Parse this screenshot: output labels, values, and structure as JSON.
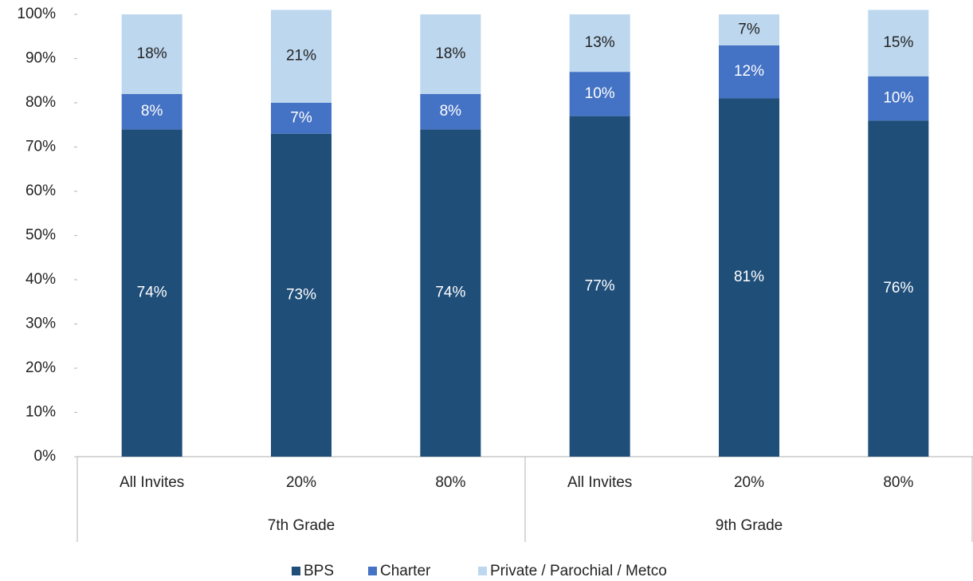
{
  "chart_data": {
    "type": "stacked_bar",
    "categories": [
      "All Invites",
      "20%",
      "80%",
      "All Invites",
      "20%",
      "80%"
    ],
    "groups": [
      "7th Grade",
      "9th Grade"
    ],
    "series": [
      {
        "name": "BPS",
        "color": "#1f4e79",
        "values": [
          74,
          73,
          74,
          77,
          81,
          76
        ],
        "value_labels": [
          "74%",
          "73%",
          "74%",
          "77%",
          "81%",
          "76%"
        ]
      },
      {
        "name": "Charter",
        "color": "#4472c4",
        "values": [
          8,
          7,
          8,
          10,
          12,
          10
        ],
        "value_labels": [
          "8%",
          "7%",
          "8%",
          "10%",
          "12%",
          "10%"
        ]
      },
      {
        "name": "Private / Parochial / Metco",
        "color": "#bdd7ee",
        "values": [
          18,
          21,
          18,
          13,
          7,
          15
        ],
        "value_labels": [
          "18%",
          "21%",
          "18%",
          "13%",
          "7%",
          "15%"
        ]
      }
    ],
    "ylim": [
      0,
      100
    ],
    "yticks": [
      {
        "value": 0,
        "label": "0%"
      },
      {
        "value": 10,
        "label": "10%"
      },
      {
        "value": 20,
        "label": "20%"
      },
      {
        "value": 30,
        "label": "30%"
      },
      {
        "value": 40,
        "label": "40%"
      },
      {
        "value": 50,
        "label": "50%"
      },
      {
        "value": 60,
        "label": "60%"
      },
      {
        "value": 70,
        "label": "70%"
      },
      {
        "value": 80,
        "label": "80%"
      },
      {
        "value": 90,
        "label": "90%"
      },
      {
        "value": 100,
        "label": "100%"
      }
    ],
    "legend": "bottom"
  }
}
